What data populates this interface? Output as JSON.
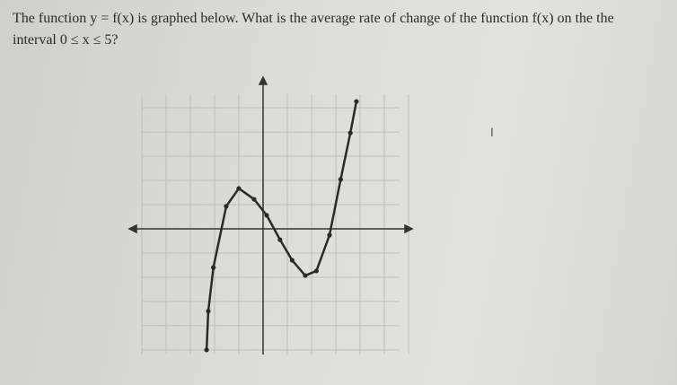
{
  "question": {
    "line1": "The function y = f(x) is graphed below. What is the average rate of change of the function f(x) on the the",
    "line2": "interval 0 ≤ x ≤ 5?"
  },
  "graph": {
    "type": "line",
    "x": [
      -2.33,
      -2.26,
      -2.05,
      -1.52,
      -1.0,
      -0.37,
      0.15,
      0.7,
      1.2,
      1.74,
      2.2,
      2.74,
      3.2,
      3.6,
      3.85
    ],
    "y": [
      -5.0,
      -3.4,
      -1.6,
      0.93,
      1.67,
      1.22,
      0.56,
      -0.45,
      -1.3,
      -1.93,
      -1.74,
      -0.26,
      2.04,
      3.96,
      5.26
    ],
    "xlim": [
      -5.37,
      6
    ],
    "ylim": [
      -5.19,
      5.93
    ],
    "grid": true,
    "color": "#2a2a2a"
  }
}
